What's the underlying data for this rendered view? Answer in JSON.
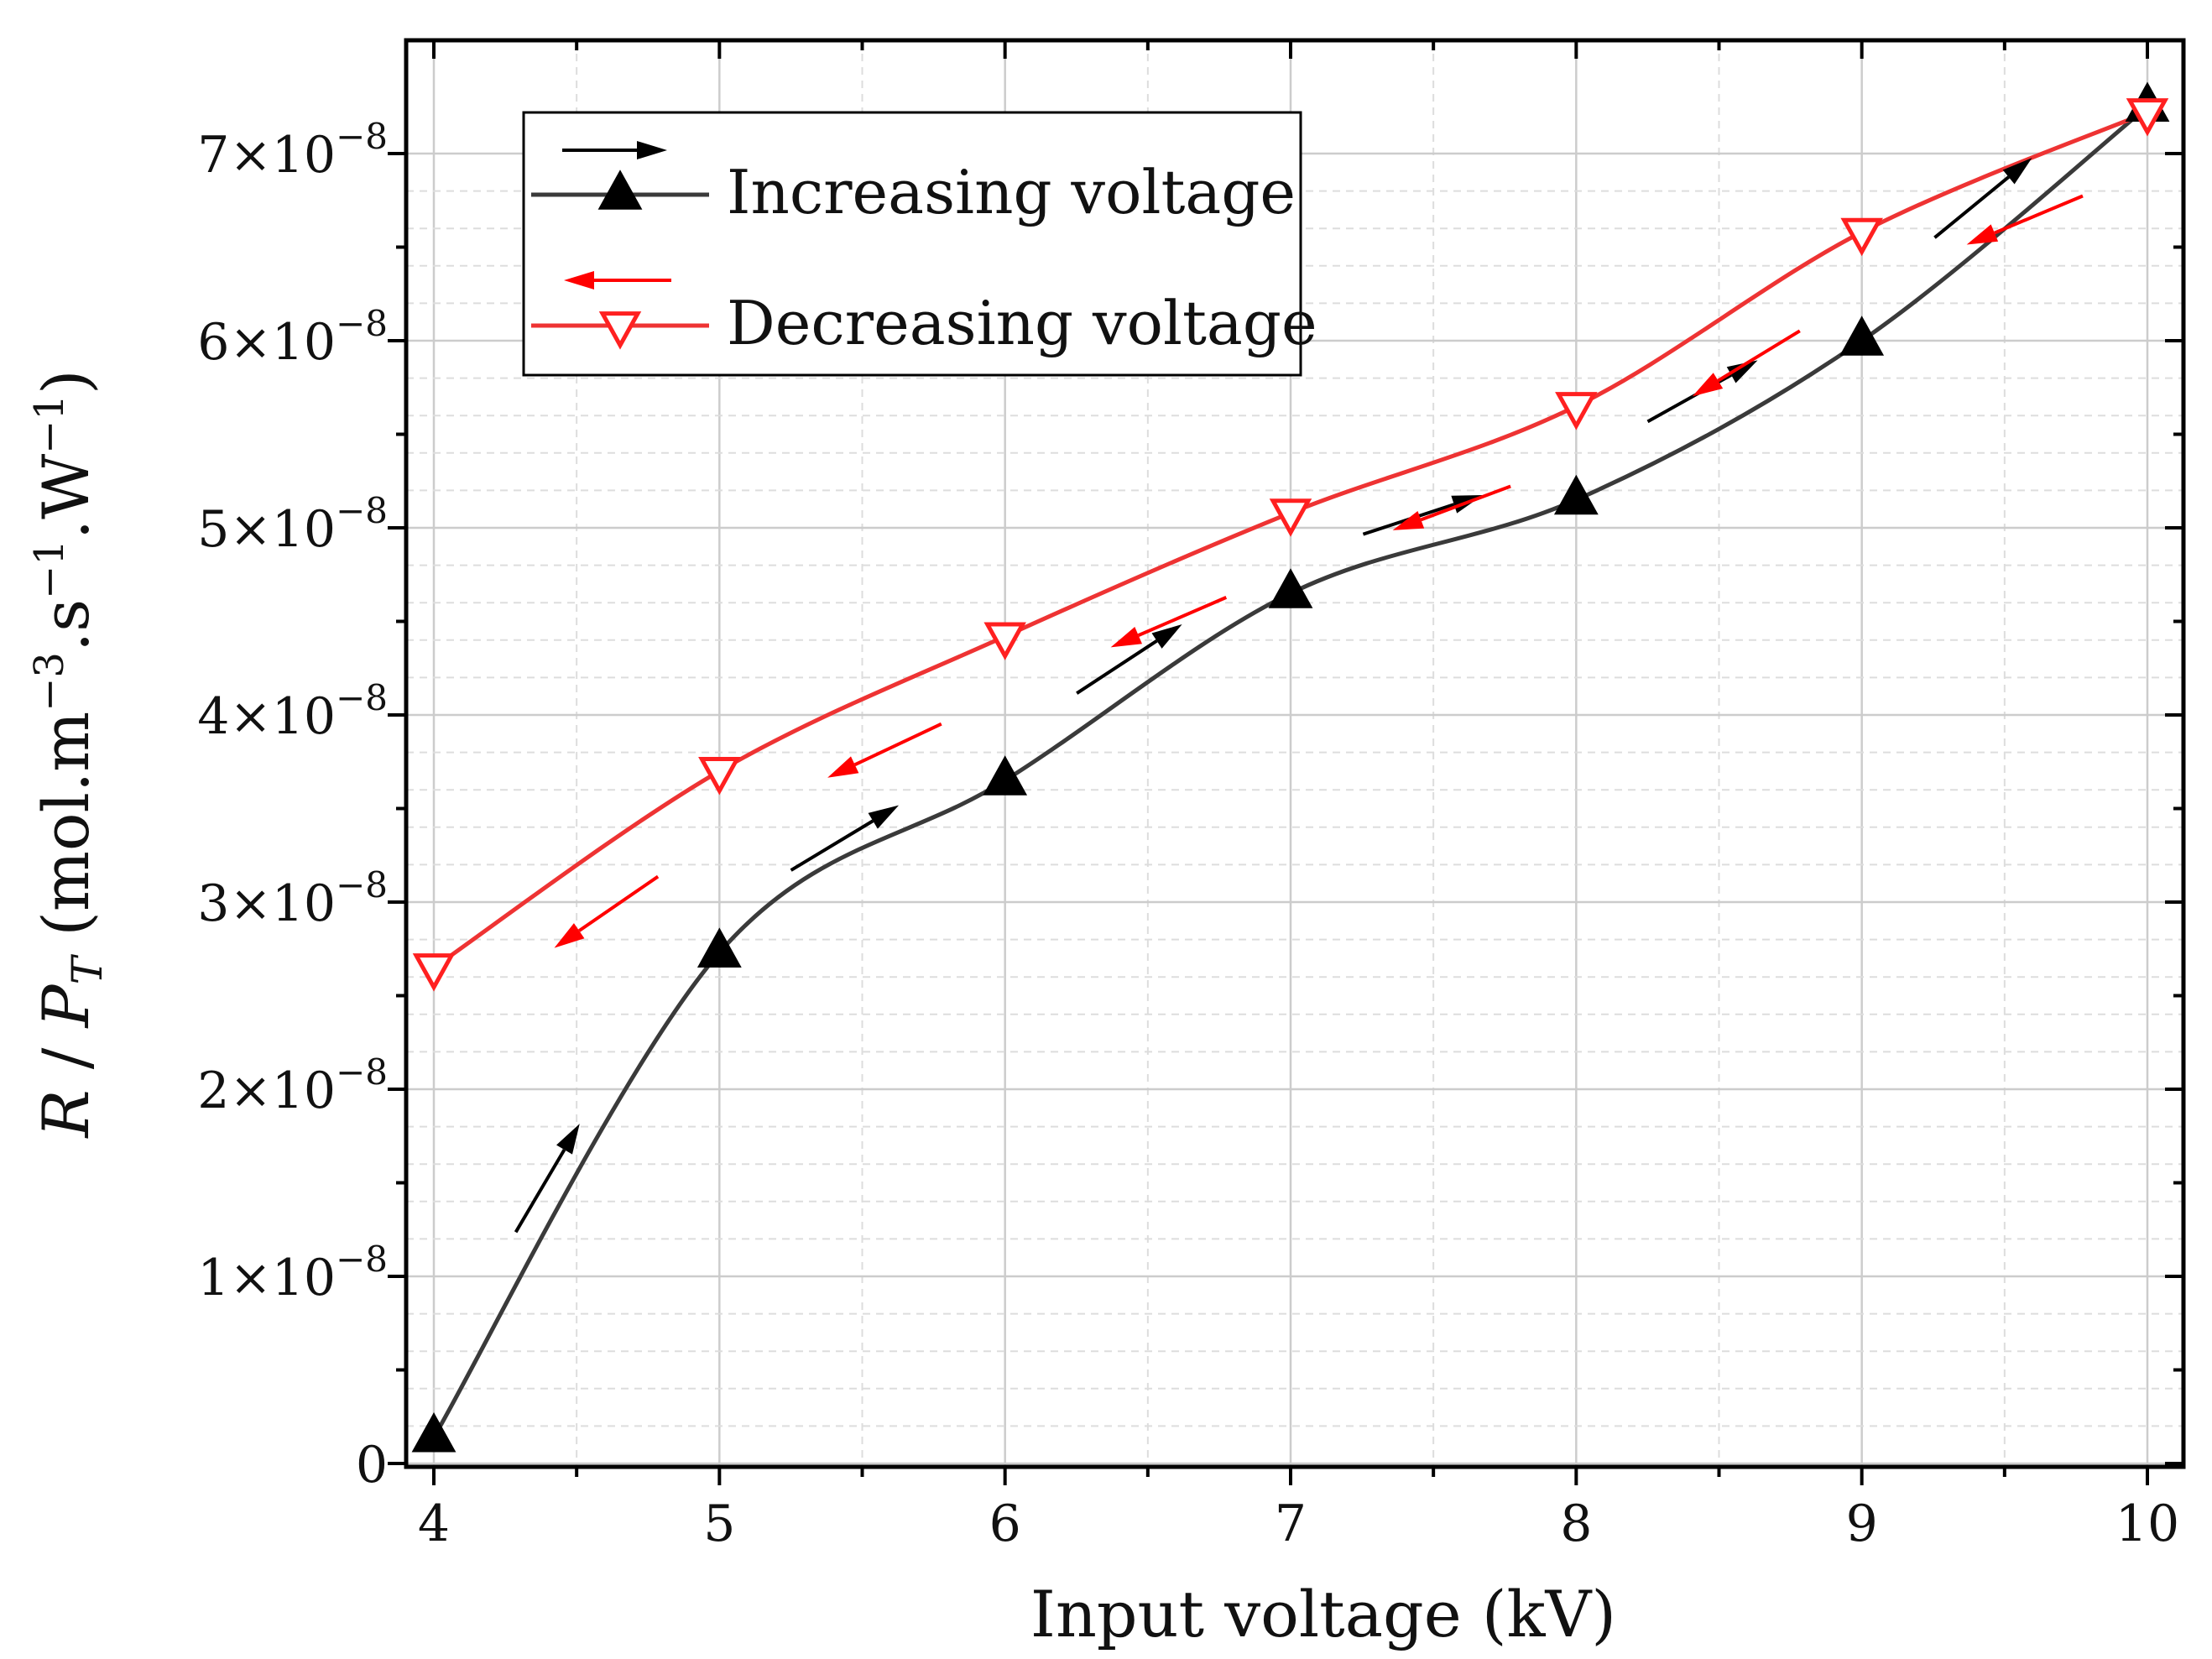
{
  "chart_data": {
    "type": "line",
    "xlabel": "Input voltage (kV)",
    "ylabel_parts": {
      "R": "R",
      "slash": " / ",
      "P": "P",
      "T": "T",
      "open": " (mol.m",
      "exp1": "−3",
      "mid1": ".s",
      "exp2": "−1",
      "mid2": ".W",
      "exp3": "−1",
      "close": ")"
    },
    "xlim": [
      3.9,
      10.1
    ],
    "ylim": [
      0,
      7.6e-08
    ],
    "x_ticks": [
      4,
      5,
      6,
      7,
      8,
      9,
      10
    ],
    "x_tick_labels": [
      "4",
      "5",
      "6",
      "7",
      "8",
      "9",
      "10"
    ],
    "y_ticks": [
      0,
      1e-08,
      2e-08,
      3e-08,
      4e-08,
      5e-08,
      6e-08,
      7e-08
    ],
    "y_tick_labels": [
      {
        "base": "0",
        "exp": ""
      },
      {
        "base": "1×10",
        "exp": "−8"
      },
      {
        "base": "2×10",
        "exp": "−8"
      },
      {
        "base": "3×10",
        "exp": "−8"
      },
      {
        "base": "4×10",
        "exp": "−8"
      },
      {
        "base": "5×10",
        "exp": "−8"
      },
      {
        "base": "6×10",
        "exp": "−8"
      },
      {
        "base": "7×10",
        "exp": "−8"
      }
    ],
    "grid": true,
    "legend_position": "top-left",
    "series": [
      {
        "name": "Increasing voltage",
        "color": "#3a3a3a",
        "marker": "filled-up-triangle",
        "marker_color": "#000000",
        "arrow_color": "#000000",
        "x": [
          4,
          5,
          6,
          7,
          8,
          9,
          10
        ],
        "values": [
          1.4e-09,
          2.73e-08,
          3.65e-08,
          4.65e-08,
          5.15e-08,
          6e-08,
          7.25e-08
        ]
      },
      {
        "name": "Decreasing voltage",
        "color": "#ee3333",
        "marker": "open-down-triangle",
        "marker_color": "#ff2020",
        "arrow_color": "#ff0000",
        "x": [
          4,
          5,
          6,
          7,
          8,
          9,
          10
        ],
        "values": [
          2.65e-08,
          3.7e-08,
          4.42e-08,
          5.08e-08,
          5.65e-08,
          6.58e-08,
          7.22e-08
        ]
      }
    ]
  }
}
